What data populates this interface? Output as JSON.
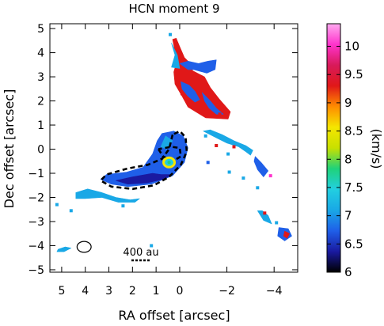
{
  "chart_data": {
    "type": "heatmap",
    "title": "HCN moment 9",
    "xlabel": "RA offset [arcsec]",
    "ylabel": "Dec offset [arcsec]",
    "xlim": [
      5.5,
      -5.0
    ],
    "ylim": [
      -5.1,
      5.2
    ],
    "x_ticks": [
      5,
      4,
      3,
      2,
      1,
      0,
      -2,
      -4
    ],
    "y_ticks": [
      5,
      4,
      3,
      2,
      1,
      0,
      -1,
      -2,
      -3,
      -4,
      -5
    ],
    "colorbar": {
      "label": "(km/s)",
      "range": [
        6,
        10.4
      ],
      "ticks": [
        6,
        6.5,
        7,
        7.5,
        8,
        8.5,
        9,
        9.5,
        10
      ],
      "colors": [
        "#000000",
        "#1a1aa0",
        "#1f5fe8",
        "#19a8e6",
        "#22cfe0",
        "#1fd27a",
        "#c8e000",
        "#f5e600",
        "#ff8c00",
        "#e01818",
        "#d81a5a",
        "#ff33cc",
        "#ffaaf0"
      ]
    },
    "scale_bar": {
      "label": "400 au"
    },
    "regions": [
      {
        "name": "north-streamer-red",
        "velocity": 9.3,
        "color": "#e01818",
        "polygon": [
          [
            0.3,
            4.55
          ],
          [
            0.2,
            4.05
          ],
          [
            0.1,
            3.7
          ],
          [
            0.25,
            3.2
          ],
          [
            0.2,
            2.7
          ],
          [
            -0.1,
            2.2
          ],
          [
            -0.35,
            1.75
          ],
          [
            -1.1,
            1.3
          ],
          [
            -2.05,
            1.25
          ],
          [
            -2.15,
            1.55
          ],
          [
            -1.7,
            2.05
          ],
          [
            -1.3,
            2.55
          ],
          [
            -1.05,
            3.0
          ],
          [
            -0.55,
            3.25
          ],
          [
            -0.45,
            3.55
          ],
          [
            -0.2,
            3.8
          ],
          [
            0.0,
            4.25
          ],
          [
            0.15,
            4.6
          ]
        ]
      },
      {
        "name": "north-streamer-blue-1",
        "velocity": 7.2,
        "color": "#1f5fe8",
        "polygon": [
          [
            0.0,
            3.55
          ],
          [
            -0.35,
            3.3
          ],
          [
            -0.6,
            3.3
          ],
          [
            -1.15,
            3.15
          ],
          [
            -1.5,
            3.3
          ],
          [
            -1.55,
            3.7
          ],
          [
            -1.2,
            3.65
          ],
          [
            -0.8,
            3.55
          ],
          [
            -0.35,
            3.65
          ]
        ]
      },
      {
        "name": "north-streamer-blue-2",
        "velocity": 7.0,
        "color": "#1f5fe8",
        "polygon": [
          [
            -0.05,
            2.8
          ],
          [
            -0.4,
            2.65
          ],
          [
            -0.65,
            2.4
          ],
          [
            -0.85,
            2.05
          ],
          [
            -0.65,
            1.95
          ],
          [
            -0.35,
            2.2
          ],
          [
            -0.1,
            2.5
          ]
        ]
      },
      {
        "name": "north-streamer-blue-3",
        "velocity": 7.0,
        "color": "#1f5fe8",
        "polygon": [
          [
            -0.95,
            2.35
          ],
          [
            -1.3,
            2.0
          ],
          [
            -1.55,
            1.7
          ],
          [
            -1.85,
            1.45
          ],
          [
            -1.55,
            1.45
          ],
          [
            -1.25,
            1.7
          ],
          [
            -1.05,
            2.0
          ]
        ]
      },
      {
        "name": "north-streamer-cyan",
        "velocity": 7.6,
        "color": "#19a8e6",
        "polygon": [
          [
            0.35,
            4.4
          ],
          [
            0.2,
            3.9
          ],
          [
            0.35,
            3.4
          ],
          [
            0.0,
            3.35
          ],
          [
            0.1,
            3.9
          ]
        ]
      },
      {
        "name": "disk",
        "velocity": 7.0,
        "color": "#1f5fe8",
        "polygon": [
          [
            0.75,
            0.65
          ],
          [
            0.95,
            0.35
          ],
          [
            1.15,
            -0.2
          ],
          [
            1.55,
            -0.75
          ],
          [
            2.25,
            -0.95
          ],
          [
            3.1,
            -1.05
          ],
          [
            3.35,
            -1.25
          ],
          [
            2.9,
            -1.45
          ],
          [
            2.2,
            -1.55
          ],
          [
            1.2,
            -1.45
          ],
          [
            0.3,
            -1.1
          ],
          [
            -0.2,
            -0.55
          ],
          [
            -0.35,
            0.05
          ],
          [
            -0.15,
            0.55
          ],
          [
            0.25,
            0.75
          ]
        ]
      },
      {
        "name": "disk-dark",
        "velocity": 6.5,
        "color": "#1a1aa0",
        "polygon": [
          [
            1.15,
            -1.0
          ],
          [
            2.0,
            -1.15
          ],
          [
            2.7,
            -1.3
          ],
          [
            2.2,
            -1.45
          ],
          [
            1.4,
            -1.4
          ],
          [
            0.7,
            -1.25
          ],
          [
            0.3,
            -1.05
          ],
          [
            0.8,
            -1.05
          ]
        ]
      },
      {
        "name": "disk-cyan-rim",
        "velocity": 7.6,
        "color": "#19a8e6",
        "polygon": [
          [
            0.6,
            0.55
          ],
          [
            0.8,
            0.1
          ],
          [
            0.55,
            0.0
          ],
          [
            0.3,
            0.35
          ]
        ]
      },
      {
        "name": "south-cyan-arm",
        "velocity": 7.5,
        "color": "#19a8e6",
        "polygon": [
          [
            4.4,
            -1.8
          ],
          [
            3.9,
            -1.65
          ],
          [
            3.3,
            -1.8
          ],
          [
            2.7,
            -2.0
          ],
          [
            2.1,
            -2.1
          ],
          [
            1.7,
            -2.05
          ],
          [
            1.9,
            -2.2
          ],
          [
            2.6,
            -2.2
          ],
          [
            3.3,
            -2.0
          ],
          [
            4.0,
            -2.05
          ],
          [
            4.4,
            -2.05
          ]
        ]
      },
      {
        "name": "southeast-streamer-cyan",
        "velocity": 7.5,
        "color": "#19a8e6",
        "polygon": [
          [
            -1.0,
            0.75
          ],
          [
            -1.6,
            0.45
          ],
          [
            -2.0,
            0.25
          ],
          [
            -2.5,
            0.1
          ],
          [
            -2.8,
            -0.1
          ],
          [
            -3.0,
            -0.25
          ],
          [
            -3.1,
            -0.05
          ],
          [
            -2.8,
            0.15
          ],
          [
            -2.3,
            0.35
          ],
          [
            -1.8,
            0.6
          ],
          [
            -1.3,
            0.8
          ]
        ]
      },
      {
        "name": "southeast-streamer-blue",
        "velocity": 7.0,
        "color": "#1f5fe8",
        "polygon": [
          [
            -3.2,
            -0.3
          ],
          [
            -3.45,
            -0.55
          ],
          [
            -3.75,
            -0.9
          ],
          [
            -3.55,
            -1.15
          ],
          [
            -3.3,
            -0.85
          ],
          [
            -3.15,
            -0.5
          ]
        ]
      },
      {
        "name": "southeast-tail-cyan",
        "velocity": 7.5,
        "color": "#19a8e6",
        "polygon": [
          [
            -3.3,
            -2.55
          ],
          [
            -3.55,
            -2.95
          ],
          [
            -3.9,
            -3.1
          ],
          [
            -3.75,
            -2.75
          ],
          [
            -3.5,
            -2.55
          ]
        ]
      },
      {
        "name": "southeast-tail-blue",
        "velocity": 7.0,
        "color": "#1f5fe8",
        "polygon": [
          [
            -4.2,
            -3.25
          ],
          [
            -4.6,
            -3.3
          ],
          [
            -4.75,
            -3.6
          ],
          [
            -4.45,
            -3.8
          ],
          [
            -4.15,
            -3.6
          ]
        ]
      },
      {
        "name": "southeast-tail-red",
        "velocity": 9.4,
        "color": "#e01818",
        "polygon": [
          [
            -4.45,
            -3.4
          ],
          [
            -4.65,
            -3.5
          ],
          [
            -4.55,
            -3.7
          ],
          [
            -4.4,
            -3.6
          ]
        ]
      },
      {
        "name": "west-patch-cyan",
        "velocity": 7.5,
        "color": "#19a8e6",
        "polygon": [
          [
            5.15,
            -4.15
          ],
          [
            4.85,
            -4.05
          ],
          [
            4.6,
            -4.1
          ],
          [
            4.9,
            -4.25
          ],
          [
            5.2,
            -4.25
          ]
        ]
      }
    ],
    "specks": [
      {
        "x": -1.1,
        "y": 0.55,
        "color": "#19a8e6"
      },
      {
        "x": -1.55,
        "y": 0.15,
        "color": "#e01818"
      },
      {
        "x": -2.3,
        "y": 0.1,
        "color": "#e01818"
      },
      {
        "x": -2.05,
        "y": -0.2,
        "color": "#19a8e6"
      },
      {
        "x": -1.2,
        "y": -0.55,
        "color": "#1f5fe8"
      },
      {
        "x": -2.1,
        "y": -0.95,
        "color": "#19a8e6"
      },
      {
        "x": -2.7,
        "y": -1.2,
        "color": "#19a8e6"
      },
      {
        "x": -3.85,
        "y": -1.1,
        "color": "#ff33cc"
      },
      {
        "x": -3.3,
        "y": -1.6,
        "color": "#19a8e6"
      },
      {
        "x": -3.6,
        "y": -2.65,
        "color": "#e01818"
      },
      {
        "x": -4.1,
        "y": -3.05,
        "color": "#19a8e6"
      },
      {
        "x": 4.6,
        "y": -2.55,
        "color": "#19a8e6"
      },
      {
        "x": 5.2,
        "y": -2.3,
        "color": "#19a8e6"
      },
      {
        "x": 2.4,
        "y": -2.35,
        "color": "#19a8e6"
      },
      {
        "x": 1.2,
        "y": -4.0,
        "color": "#19a8e6"
      },
      {
        "x": 0.4,
        "y": 4.75,
        "color": "#19a8e6"
      },
      {
        "x": -0.1,
        "y": 2.3,
        "color": "#e01818"
      },
      {
        "x": -1.7,
        "y": 1.45,
        "color": "#e01818"
      }
    ],
    "contours": [
      {
        "name": "continuum-contour-outer",
        "style": "dashed",
        "points": [
          [
            0.3,
            0.6
          ],
          [
            0.45,
            0.0
          ],
          [
            0.75,
            -0.4
          ],
          [
            1.35,
            -0.65
          ],
          [
            2.2,
            -0.8
          ],
          [
            3.1,
            -1.05
          ],
          [
            3.35,
            -1.3
          ],
          [
            2.9,
            -1.55
          ],
          [
            2.0,
            -1.65
          ],
          [
            1.1,
            -1.5
          ],
          [
            0.45,
            -1.15
          ],
          [
            -0.05,
            -0.65
          ],
          [
            -0.3,
            -0.1
          ],
          [
            -0.25,
            0.5
          ],
          [
            0.0,
            0.75
          ],
          [
            0.3,
            0.6
          ]
        ]
      },
      {
        "name": "continuum-contour-inner",
        "style": "dashed",
        "points": [
          [
            0.9,
            0.0
          ],
          [
            0.7,
            -0.3
          ],
          [
            0.3,
            -0.5
          ],
          [
            -0.05,
            -0.3
          ],
          [
            0.0,
            0.05
          ],
          [
            0.35,
            0.1
          ],
          [
            0.9,
            0.0
          ]
        ]
      }
    ],
    "peak": {
      "x": 0.45,
      "y": -0.55,
      "velocity": 9.0
    },
    "beam": {
      "x": 4.05,
      "y": -4.05,
      "major": 0.6,
      "minor": 0.45
    }
  }
}
